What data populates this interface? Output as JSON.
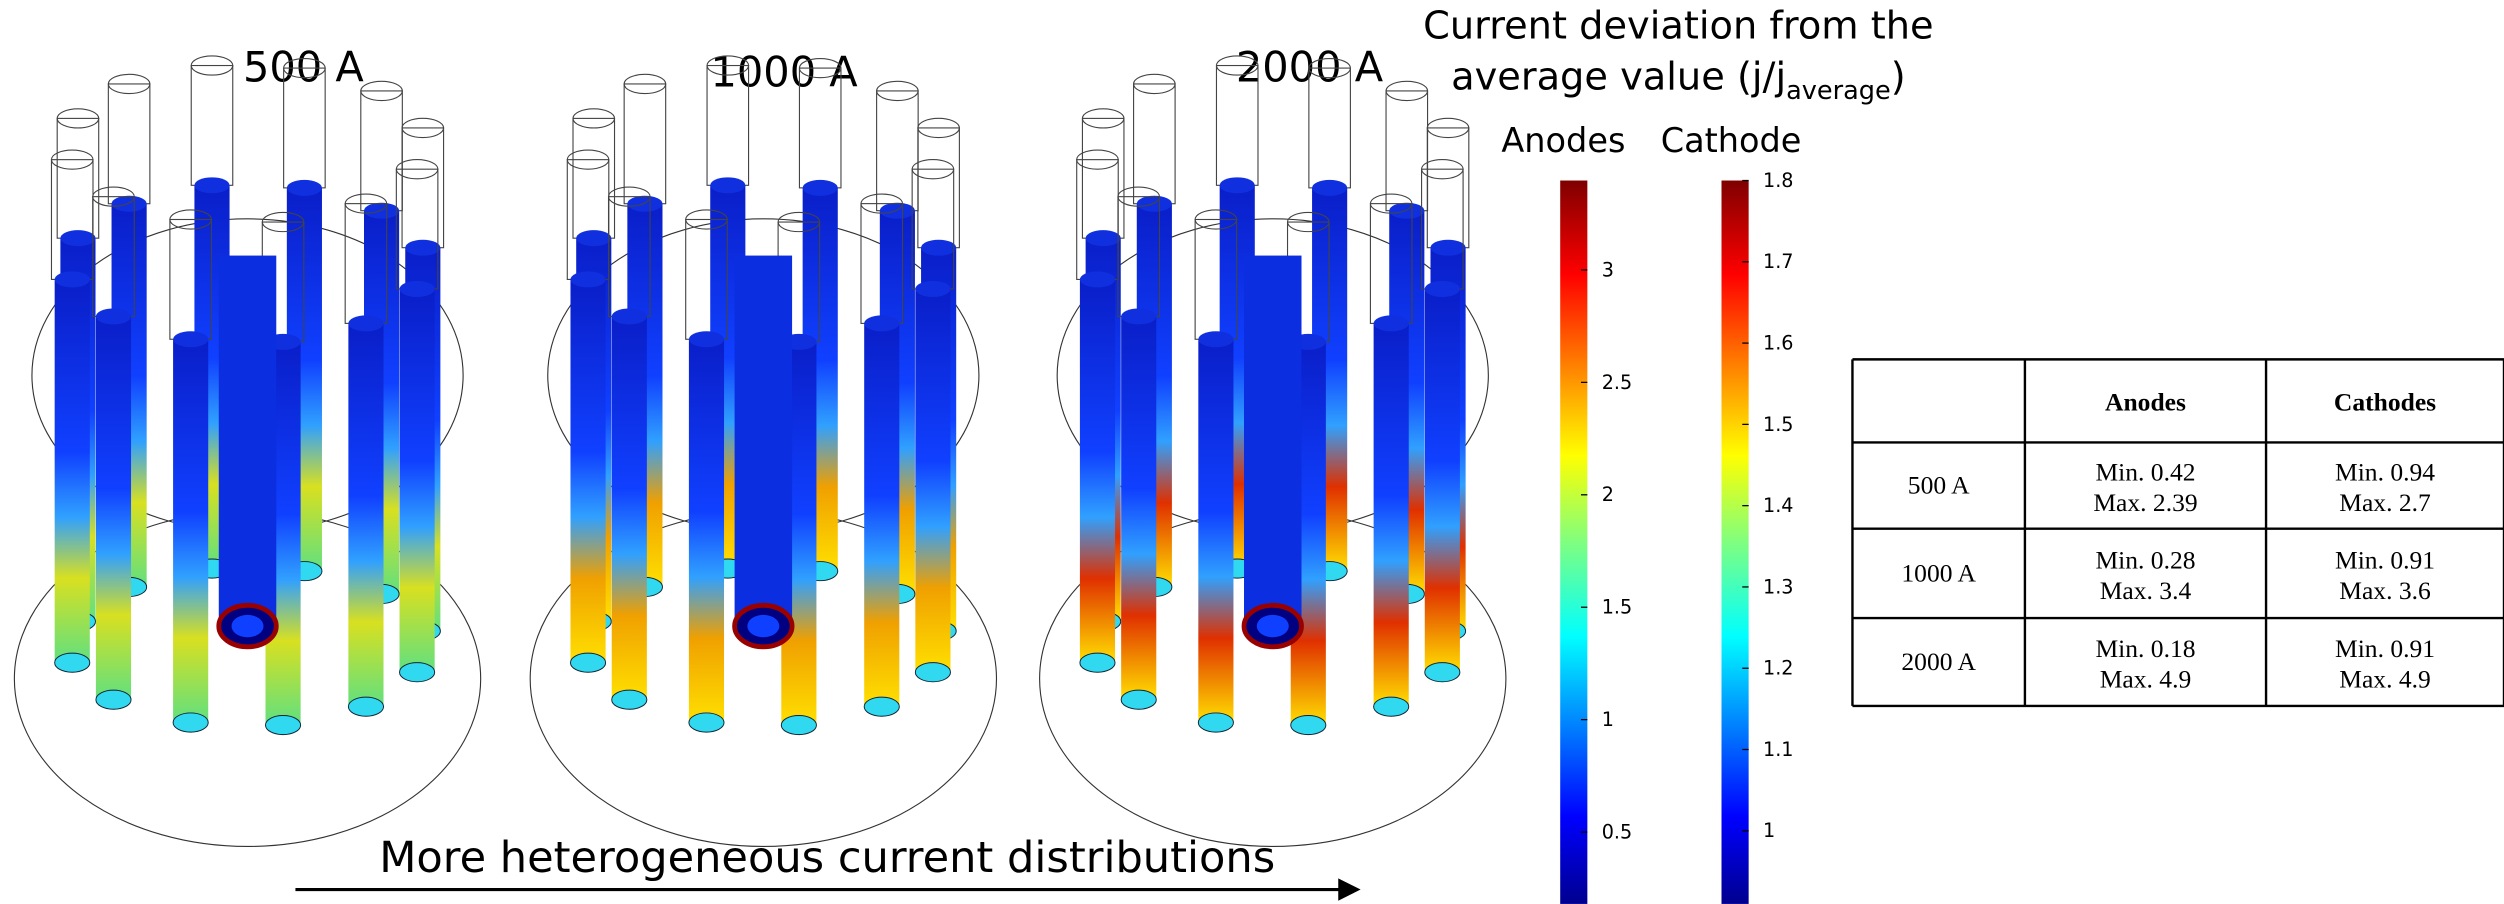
{
  "panels": [
    {
      "label": "500 A"
    },
    {
      "label": "1000 A"
    },
    {
      "label": "2000 A"
    }
  ],
  "colorbar": {
    "title_line1": "Current deviation from the",
    "title_line2": "average value (j/j",
    "title_sub": "average",
    "title_end": ")",
    "anodes": {
      "label": "Anodes",
      "ticks": [
        "3",
        "2.5",
        "2",
        "1.5",
        "1",
        "0.5"
      ]
    },
    "cathode": {
      "label": "Cathode",
      "ticks": [
        "1.8",
        "1.7",
        "1.6",
        "1.5",
        "1.4",
        "1.3",
        "1.2",
        "1.1",
        "1"
      ]
    }
  },
  "arrow_label": "More heterogeneous current distributions",
  "table": {
    "header": [
      "Anodes",
      "Cathodes"
    ],
    "rows": [
      {
        "label": "500 A",
        "anodes": {
          "min": "Min. 0.42",
          "max": "Max. 2.39"
        },
        "cathodes": {
          "min": "Min. 0.94",
          "max": "Max. 2.7"
        }
      },
      {
        "label": "1000 A",
        "anodes": {
          "min": "Min. 0.28",
          "max": "Max. 3.4"
        },
        "cathodes": {
          "min": "Min. 0.91",
          "max": "Max. 3.6"
        }
      },
      {
        "label": "2000 A",
        "anodes": {
          "min": "Min. 0.18",
          "max": "Max. 4.9"
        },
        "cathodes": {
          "min": "Min. 0.91",
          "max": "Max. 4.9"
        }
      }
    ]
  }
}
